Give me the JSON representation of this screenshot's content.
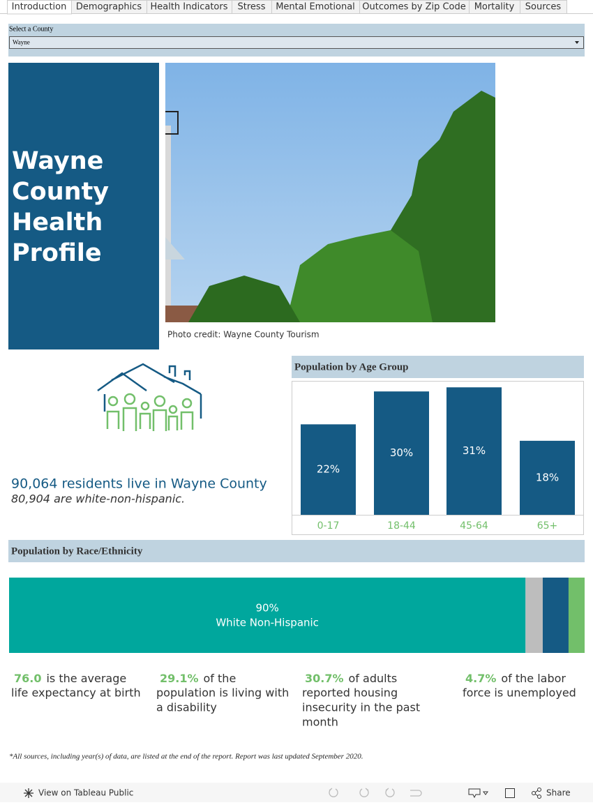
{
  "tabs": [
    "Introduction",
    "Demographics",
    "Health Indicators",
    "Stress",
    "Mental Emotional",
    "Outcomes by Zip Code",
    "Mortality",
    "Sources"
  ],
  "selector": {
    "label": "Select a County",
    "value": "Wayne"
  },
  "title_lines": [
    "Wayne",
    "County",
    "Health",
    "Profile"
  ],
  "photo_credit": "Photo credit: Wayne County Tourism",
  "residents": {
    "headline": "90,064 residents live in Wayne County",
    "subline": "80,904 are white-non-hispanic."
  },
  "age_chart": {
    "type": "bar",
    "title": "Population by Age Group",
    "categories": [
      "0-17",
      "18-44",
      "45-64",
      "65+"
    ],
    "values": [
      22,
      30,
      31,
      18
    ],
    "value_labels": [
      "22%",
      "30%",
      "31%",
      "18%"
    ],
    "color": "#155a84",
    "ylim": [
      0,
      32.4
    ]
  },
  "race_chart": {
    "type": "stacked-bar",
    "title": "Population by Race/Ethnicity",
    "series": [
      {
        "name": "White Non-Hispanic",
        "color": "#00a79d",
        "values": [
          90
        ],
        "value_labels": [
          "90%"
        ]
      },
      {
        "name": null,
        "color": "#bdbdbd",
        "values": [
          3
        ]
      },
      {
        "name": null,
        "color": "#155a84",
        "values": [
          4.5
        ]
      },
      {
        "name": null,
        "color": "#72bf6a",
        "values": [
          2.8
        ]
      }
    ],
    "xlim": [
      0,
      100.3
    ]
  },
  "stats": [
    {
      "value": "76.0",
      "lines": [
        "is the average",
        "life expectancy at birth"
      ]
    },
    {
      "value": "29.1%",
      "lines": [
        "of the",
        "population is living with",
        "a disability"
      ]
    },
    {
      "value": "30.7%",
      "lines": [
        "of adults",
        "reported housing",
        "insecurity in the past",
        "month"
      ]
    },
    {
      "value": "4.7%",
      "lines": [
        "of the labor",
        "force is unemployed"
      ]
    }
  ],
  "footnote": "*All sources, including year(s) of data, are listed at the end of the report. Report was last updated September 2020.",
  "toolbar": {
    "view": "View on Tableau Public",
    "share": "Share"
  }
}
